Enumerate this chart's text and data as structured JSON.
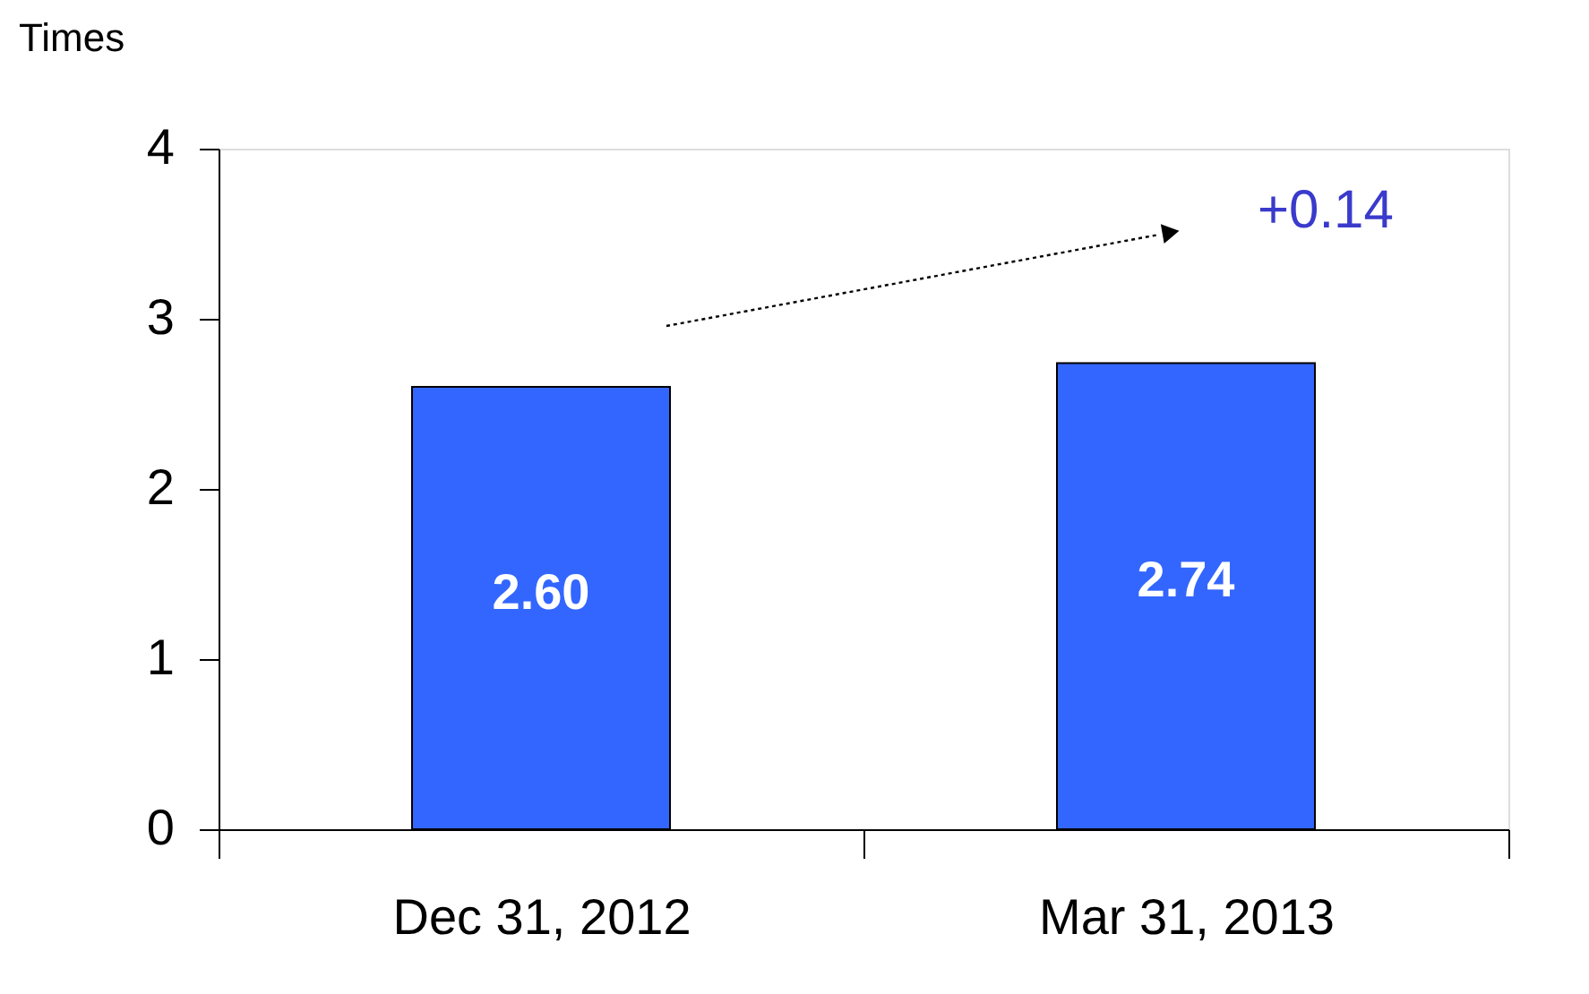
{
  "chart_data": {
    "type": "bar",
    "ylabel": "Times",
    "categories": [
      "Dec 31, 2012",
      "Mar 31, 2013"
    ],
    "values": [
      2.6,
      2.74
    ],
    "color": "#3366ff",
    "ylim": [
      0,
      4
    ],
    "yticks": [
      0,
      1,
      2,
      3,
      4
    ],
    "grid": false,
    "value_labels": [
      "2.60",
      "2.74"
    ],
    "annotations": [
      "+0.14"
    ]
  }
}
